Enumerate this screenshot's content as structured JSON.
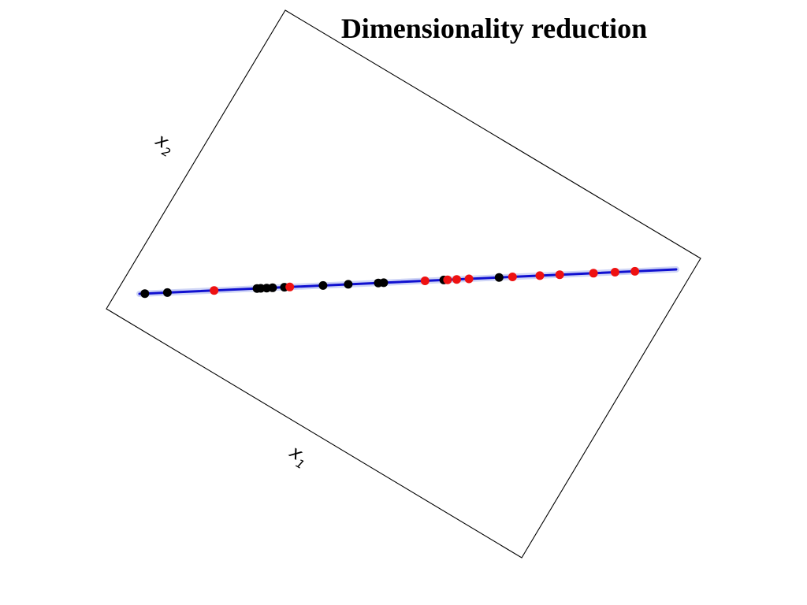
{
  "title": "Dimensionality reduction",
  "axes": {
    "x": {
      "label": "x",
      "subscript": "1"
    },
    "y": {
      "label": "x",
      "subscript": "2"
    }
  },
  "colors": {
    "frame": "#000000",
    "line": "#1010d0",
    "line_glow": "#a8b4f0",
    "class_a": "#000000",
    "class_b": "#ee1111"
  },
  "projected_points": [
    {
      "t": 0.01,
      "class": "class_a"
    },
    {
      "t": 0.052,
      "class": "class_a"
    },
    {
      "t": 0.139,
      "class": "class_b"
    },
    {
      "t": 0.219,
      "class": "class_a"
    },
    {
      "t": 0.226,
      "class": "class_a"
    },
    {
      "t": 0.237,
      "class": "class_a"
    },
    {
      "t": 0.248,
      "class": "class_a"
    },
    {
      "t": 0.27,
      "class": "class_a"
    },
    {
      "t": 0.28,
      "class": "class_b"
    },
    {
      "t": 0.342,
      "class": "class_a"
    },
    {
      "t": 0.389,
      "class": "class_a"
    },
    {
      "t": 0.445,
      "class": "class_a"
    },
    {
      "t": 0.455,
      "class": "class_a"
    },
    {
      "t": 0.532,
      "class": "class_b"
    },
    {
      "t": 0.567,
      "class": "class_a"
    },
    {
      "t": 0.574,
      "class": "class_b"
    },
    {
      "t": 0.591,
      "class": "class_b"
    },
    {
      "t": 0.614,
      "class": "class_b"
    },
    {
      "t": 0.67,
      "class": "class_a"
    },
    {
      "t": 0.695,
      "class": "class_b"
    },
    {
      "t": 0.746,
      "class": "class_b"
    },
    {
      "t": 0.783,
      "class": "class_b"
    },
    {
      "t": 0.846,
      "class": "class_b"
    },
    {
      "t": 0.886,
      "class": "class_b"
    },
    {
      "t": 0.923,
      "class": "class_b"
    }
  ]
}
